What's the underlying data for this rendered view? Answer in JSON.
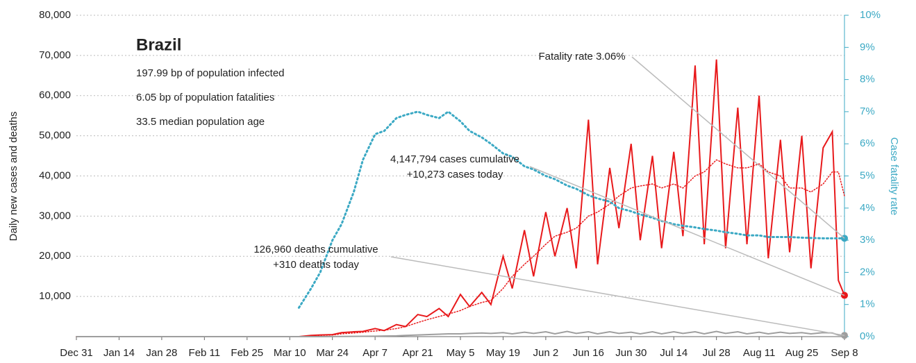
{
  "chart_data": {
    "type": "line",
    "title": "Brazil",
    "subtitle": [
      "197.99 bp of population infected",
      "6.05 bp of population fatalities",
      "33.5 median population age"
    ],
    "ylabel": "Daily new cases and deaths",
    "y2label": "Case fatality rate",
    "annotations": [
      [
        "Fatality rate 3.06%"
      ],
      [
        "4,147,794 cases cumulative",
        "+10,273 cases today"
      ],
      [
        "126,960 deaths cumulative",
        "+310 deaths today"
      ]
    ],
    "x": [
      0,
      73,
      77,
      80,
      84,
      87,
      91,
      94,
      98,
      101,
      105,
      108,
      112,
      115,
      119,
      122,
      126,
      129,
      133,
      136,
      140,
      143,
      147,
      150,
      154,
      157,
      161,
      164,
      168,
      171,
      175,
      178,
      182,
      185,
      189,
      192,
      196,
      199,
      203,
      206,
      210,
      213,
      217,
      220,
      224,
      227,
      231,
      234,
      238,
      241,
      245,
      248,
      250,
      252
    ],
    "xlim": [
      0,
      252
    ],
    "xticks": [
      {
        "value": 0,
        "label": "Dec 31"
      },
      {
        "value": 14,
        "label": "Jan 14"
      },
      {
        "value": 28,
        "label": "Jan 28"
      },
      {
        "value": 42,
        "label": "Feb 11"
      },
      {
        "value": 56,
        "label": "Feb 25"
      },
      {
        "value": 70,
        "label": "Mar 10"
      },
      {
        "value": 84,
        "label": "Mar 24"
      },
      {
        "value": 98,
        "label": "Apr 7"
      },
      {
        "value": 112,
        "label": "Apr 21"
      },
      {
        "value": 126,
        "label": "May 5"
      },
      {
        "value": 140,
        "label": "May 19"
      },
      {
        "value": 154,
        "label": "Jun 2"
      },
      {
        "value": 168,
        "label": "Jun 16"
      },
      {
        "value": 182,
        "label": "Jun 30"
      },
      {
        "value": 196,
        "label": "Jul 14"
      },
      {
        "value": 210,
        "label": "Jul 28"
      },
      {
        "value": 224,
        "label": "Aug 11"
      },
      {
        "value": 238,
        "label": "Aug 25"
      },
      {
        "value": 252,
        "label": "Sep 8"
      }
    ],
    "ylim": [
      0,
      80000
    ],
    "yticks": [
      {
        "value": 10000,
        "label": "10,000"
      },
      {
        "value": 20000,
        "label": "20,000"
      },
      {
        "value": 30000,
        "label": "30,000"
      },
      {
        "value": 40000,
        "label": "40,000"
      },
      {
        "value": 50000,
        "label": "50,000"
      },
      {
        "value": 60000,
        "label": "60,000"
      },
      {
        "value": 70000,
        "label": "70,000"
      },
      {
        "value": 80000,
        "label": "80,000"
      }
    ],
    "y2lim": [
      0,
      10
    ],
    "y2ticks": [
      {
        "value": 0,
        "label": "0%"
      },
      {
        "value": 1,
        "label": "1%"
      },
      {
        "value": 2,
        "label": "2%"
      },
      {
        "value": 3,
        "label": "3%"
      },
      {
        "value": 4,
        "label": "4%"
      },
      {
        "value": 5,
        "label": "5%"
      },
      {
        "value": 6,
        "label": "6%"
      },
      {
        "value": 7,
        "label": "7%"
      },
      {
        "value": 8,
        "label": "8%"
      },
      {
        "value": 9,
        "label": "9%"
      },
      {
        "value": 10,
        "label": "10%"
      }
    ],
    "grid": true,
    "series": [
      {
        "color": "#e8191b",
        "style": "solid",
        "end_marker": true,
        "values": [
          0,
          0,
          300,
          400,
          500,
          1000,
          1200,
          1300,
          2000,
          1500,
          3000,
          2500,
          5500,
          5000,
          7000,
          5000,
          10500,
          7500,
          11000,
          8000,
          20000,
          12000,
          26500,
          15000,
          31000,
          20000,
          32000,
          17000,
          54000,
          18000,
          42000,
          27000,
          48000,
          24000,
          45000,
          22000,
          46000,
          25000,
          67500,
          23000,
          69000,
          22000,
          57000,
          23000,
          60000,
          19500,
          49000,
          21000,
          50000,
          17000,
          47000,
          51000,
          14000,
          10273
        ]
      },
      {
        "color": "#e8191b",
        "style": "dotted",
        "end_marker": false,
        "values": [
          0,
          0,
          200,
          300,
          400,
          700,
          900,
          1100,
          1400,
          1600,
          2000,
          2500,
          3500,
          4200,
          5000,
          5600,
          6500,
          7500,
          8500,
          9000,
          12000,
          15000,
          18000,
          20000,
          23000,
          25000,
          26000,
          27000,
          30000,
          31000,
          33000,
          35000,
          37000,
          37500,
          38000,
          37000,
          38000,
          37000,
          40000,
          41000,
          44000,
          43000,
          42000,
          42000,
          43000,
          41000,
          40000,
          37000,
          37000,
          36000,
          38000,
          41000,
          41000,
          35000
        ]
      },
      {
        "color": "#9e9e9e",
        "style": "solid",
        "end_marker": true,
        "values": [
          0,
          0,
          5,
          10,
          20,
          40,
          60,
          80,
          100,
          150,
          200,
          300,
          400,
          500,
          600,
          700,
          700,
          800,
          900,
          800,
          1000,
          700,
          1100,
          800,
          1200,
          700,
          1300,
          800,
          1200,
          700,
          1200,
          800,
          1100,
          700,
          1200,
          700,
          1200,
          800,
          1200,
          700,
          1300,
          800,
          1200,
          700,
          1100,
          700,
          1100,
          800,
          1000,
          700,
          1000,
          900,
          400,
          310
        ]
      },
      {
        "color": "#3ba9c4",
        "style": "dotted",
        "axis": "y2",
        "end_marker": true,
        "values": [
          null,
          0.9,
          1.5,
          2.0,
          3.0,
          3.5,
          4.5,
          5.5,
          6.3,
          6.4,
          6.8,
          6.9,
          7.0,
          6.9,
          6.8,
          7.0,
          6.7,
          6.4,
          6.2,
          6.0,
          5.7,
          5.6,
          5.3,
          5.2,
          5.0,
          4.9,
          4.7,
          4.6,
          4.4,
          4.3,
          4.2,
          4.0,
          3.9,
          3.8,
          3.7,
          3.6,
          3.5,
          3.45,
          3.4,
          3.35,
          3.3,
          3.25,
          3.2,
          3.15,
          3.15,
          3.1,
          3.1,
          3.1,
          3.08,
          3.07,
          3.06,
          3.06,
          3.06,
          3.06
        ]
      }
    ]
  }
}
